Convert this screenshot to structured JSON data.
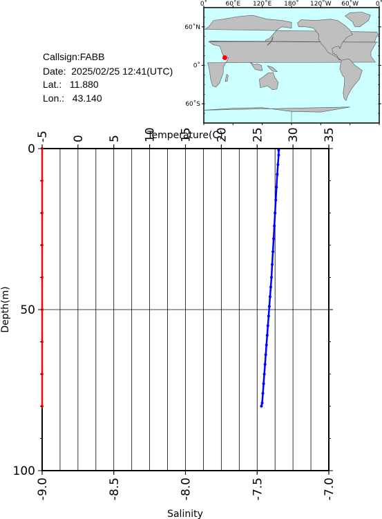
{
  "station": {
    "callsign": "Callsign:FABB",
    "date": "Date:  2025/02/25 12:41(UTC)",
    "lat": "Lat.:   11.880",
    "lon": "Lon.:   43.140"
  },
  "map": {
    "top_labels": [
      "0˚",
      "60˚E",
      "120˚E",
      "180˚",
      "120˚W",
      "60˚W",
      "0˚"
    ],
    "left_labels": [
      "60˚N",
      "0˚",
      "60˚S"
    ],
    "marker_lat": 11.88,
    "marker_lon": 43.14,
    "ocean_color": "#ccffff",
    "land_color": "#bfbfbf",
    "marker_color": "#ff0000"
  },
  "chart_data": {
    "type": "line",
    "y_axis": {
      "label": "Depth(m)",
      "range": [
        0,
        100
      ],
      "ticks": [
        0,
        50,
        100
      ],
      "inverted": true
    },
    "x_top_axis": {
      "label": "Temperature(C)",
      "range": [
        -5,
        35
      ],
      "ticks": [
        -5,
        0,
        5,
        10,
        15,
        20,
        25,
        30,
        35
      ]
    },
    "x_bottom_axis": {
      "label": "Salinity",
      "range": [
        -9.0,
        -7.0
      ],
      "ticks": [
        "-9.0",
        "-8.5",
        "-8.0",
        "-7.5",
        "-7.0"
      ]
    },
    "grid": true,
    "series": [
      {
        "axis": "temperature",
        "color": "#0000ff",
        "points": [
          [
            28.0,
            0.5
          ],
          [
            28.0,
            2
          ],
          [
            27.9,
            5
          ],
          [
            27.8,
            8
          ],
          [
            27.7,
            12
          ],
          [
            27.6,
            16
          ],
          [
            27.5,
            20
          ],
          [
            27.4,
            24
          ],
          [
            27.3,
            28
          ],
          [
            27.2,
            32
          ],
          [
            27.1,
            36
          ],
          [
            27.0,
            40
          ],
          [
            26.9,
            43
          ],
          [
            26.8,
            46
          ],
          [
            26.7,
            49
          ],
          [
            26.6,
            52
          ],
          [
            26.5,
            55
          ],
          [
            26.4,
            58
          ],
          [
            26.3,
            61
          ],
          [
            26.2,
            64
          ],
          [
            26.1,
            67
          ],
          [
            26.0,
            70
          ],
          [
            25.9,
            73
          ],
          [
            25.8,
            76
          ],
          [
            25.7,
            79
          ],
          [
            25.6,
            80
          ]
        ]
      },
      {
        "axis": "salinity",
        "color": "#ff0000",
        "points": [
          [
            -9.0,
            0
          ],
          [
            -9.0,
            10
          ],
          [
            -9.0,
            20
          ],
          [
            -9.0,
            30
          ],
          [
            -9.0,
            40
          ],
          [
            -9.0,
            50
          ],
          [
            -9.0,
            60
          ],
          [
            -9.0,
            70
          ],
          [
            -9.0,
            80
          ]
        ]
      }
    ]
  }
}
